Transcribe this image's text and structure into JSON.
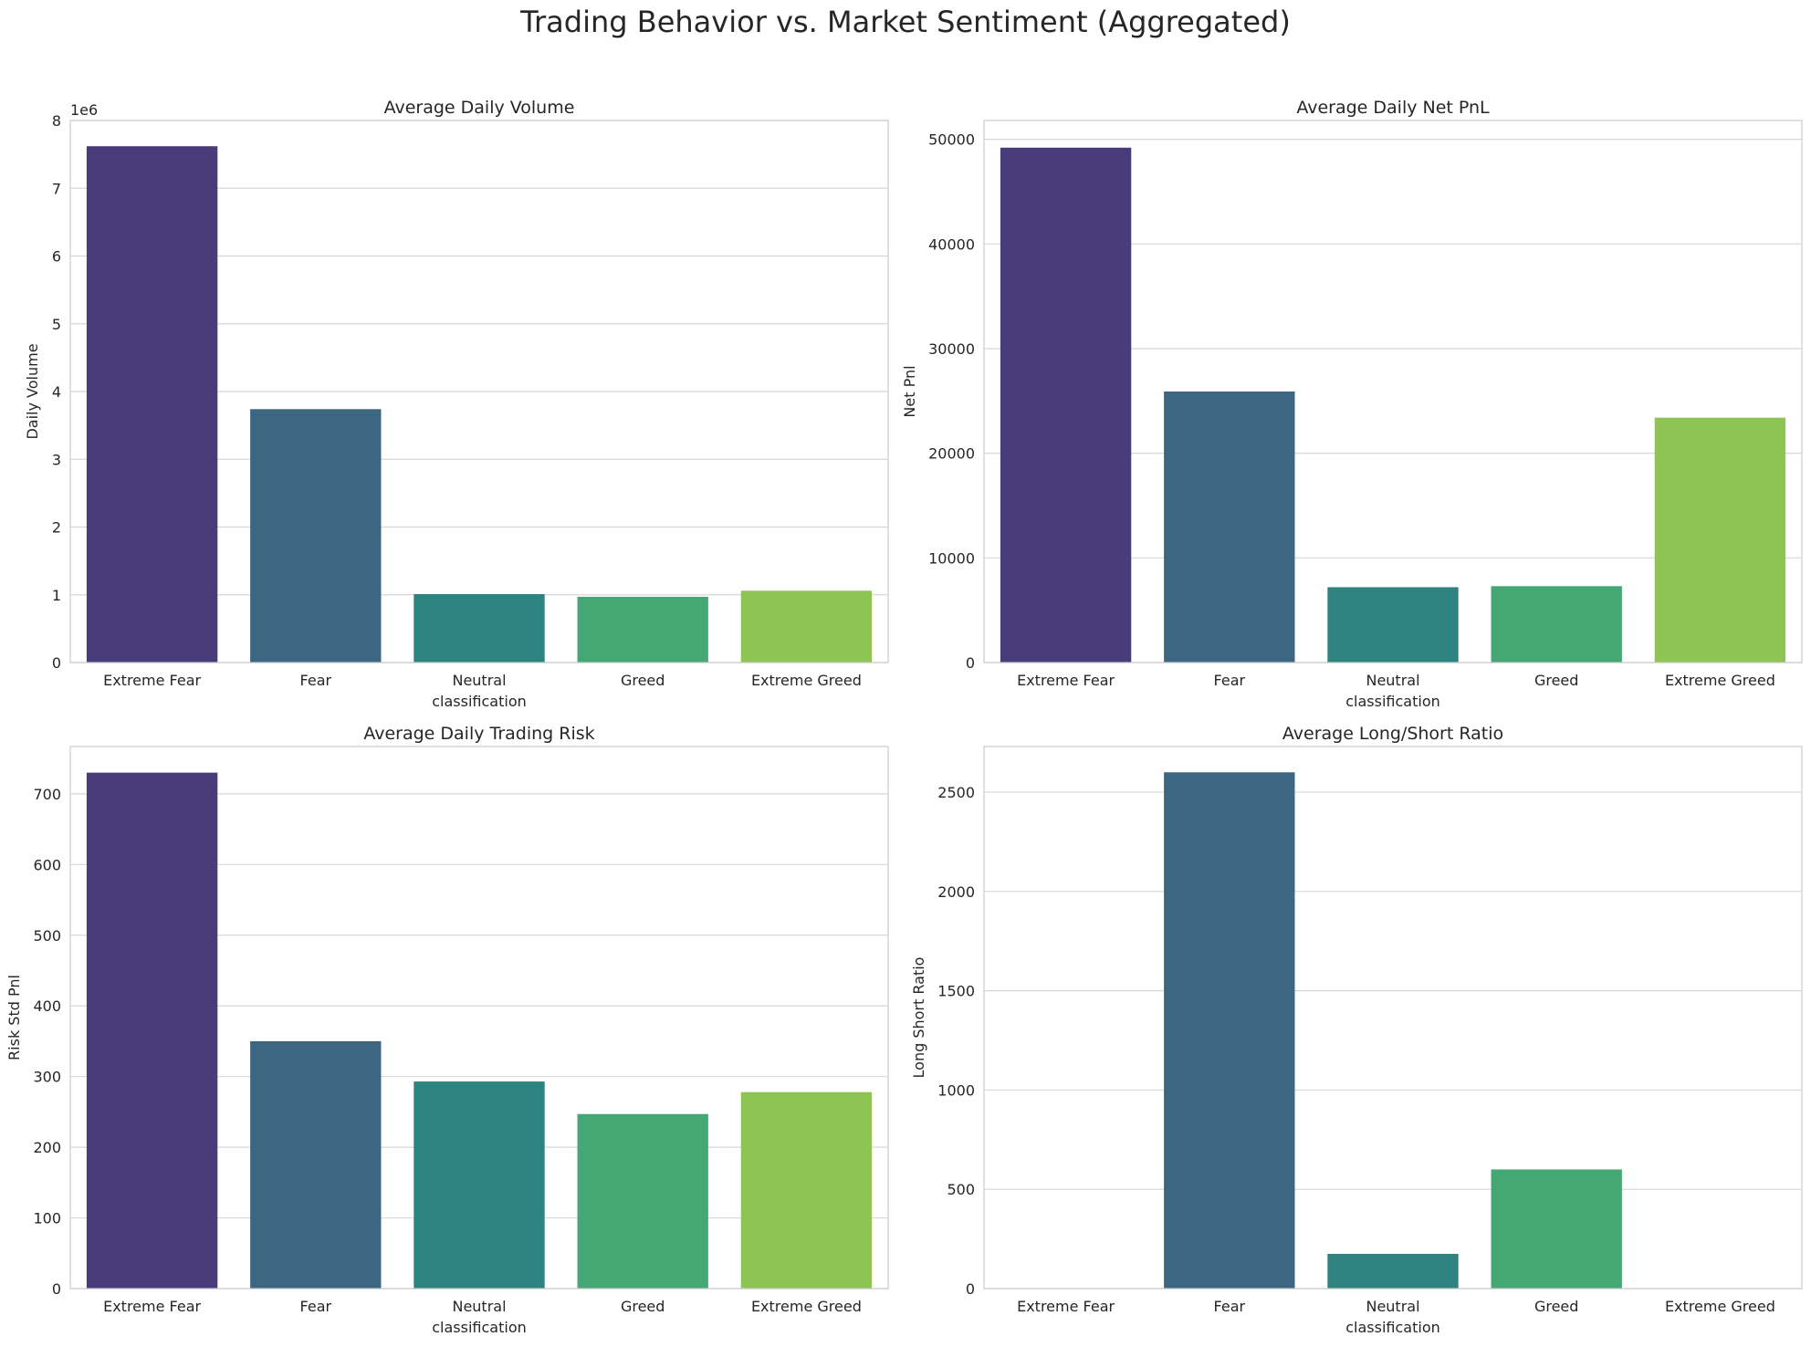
{
  "suptitle": "Trading Behavior vs. Market Sentiment (Aggregated)",
  "palette": [
    "#483d7a",
    "#3d6683",
    "#2d8380",
    "#45a773",
    "#8ec454"
  ],
  "grid_color": "#d7d7d7",
  "spine_color": "#cccccc",
  "chart_data": [
    {
      "type": "bar",
      "title": "Average Daily Volume",
      "xlabel": "classification",
      "ylabel": "Daily Volume",
      "categories": [
        "Extreme Fear",
        "Fear",
        "Neutral",
        "Greed",
        "Extreme Greed"
      ],
      "values": [
        7620000,
        3740000,
        1010000,
        970000,
        1060000
      ],
      "ylim": [
        0,
        8000000
      ],
      "ytick_values": [
        0,
        1000000,
        2000000,
        3000000,
        4000000,
        5000000,
        6000000,
        7000000,
        8000000
      ],
      "ytick_labels": [
        "0",
        "1",
        "2",
        "3",
        "4",
        "5",
        "6",
        "7",
        "8"
      ],
      "offset_label": "1e6",
      "grid": true
    },
    {
      "type": "bar",
      "title": "Average Daily Net PnL",
      "xlabel": "classification",
      "ylabel": "Net Pnl",
      "categories": [
        "Extreme Fear",
        "Fear",
        "Neutral",
        "Greed",
        "Extreme Greed"
      ],
      "values": [
        49200,
        25900,
        7200,
        7300,
        23400
      ],
      "ylim": [
        0,
        51800
      ],
      "ytick_values": [
        0,
        10000,
        20000,
        30000,
        40000,
        50000
      ],
      "ytick_labels": [
        "0",
        "10000",
        "20000",
        "30000",
        "40000",
        "50000"
      ],
      "grid": true
    },
    {
      "type": "bar",
      "title": "Average Daily Trading Risk",
      "xlabel": "classification",
      "ylabel": "Risk Std Pnl",
      "categories": [
        "Extreme Fear",
        "Fear",
        "Neutral",
        "Greed",
        "Extreme Greed"
      ],
      "values": [
        730,
        350,
        293,
        247,
        278
      ],
      "ylim": [
        0,
        767
      ],
      "ytick_values": [
        0,
        100,
        200,
        300,
        400,
        500,
        600,
        700
      ],
      "ytick_labels": [
        "0",
        "100",
        "200",
        "300",
        "400",
        "500",
        "600",
        "700"
      ],
      "grid": true
    },
    {
      "type": "bar",
      "title": "Average Long/Short Ratio",
      "xlabel": "classification",
      "ylabel": "Long Short Ratio",
      "categories": [
        "Extreme Fear",
        "Fear",
        "Neutral",
        "Greed",
        "Extreme Greed"
      ],
      "values": [
        0,
        2600,
        175,
        600,
        0
      ],
      "ylim": [
        0,
        2730
      ],
      "ytick_values": [
        0,
        500,
        1000,
        1500,
        2000,
        2500
      ],
      "ytick_labels": [
        "0",
        "500",
        "1000",
        "1500",
        "2000",
        "2500"
      ],
      "grid": true
    }
  ]
}
